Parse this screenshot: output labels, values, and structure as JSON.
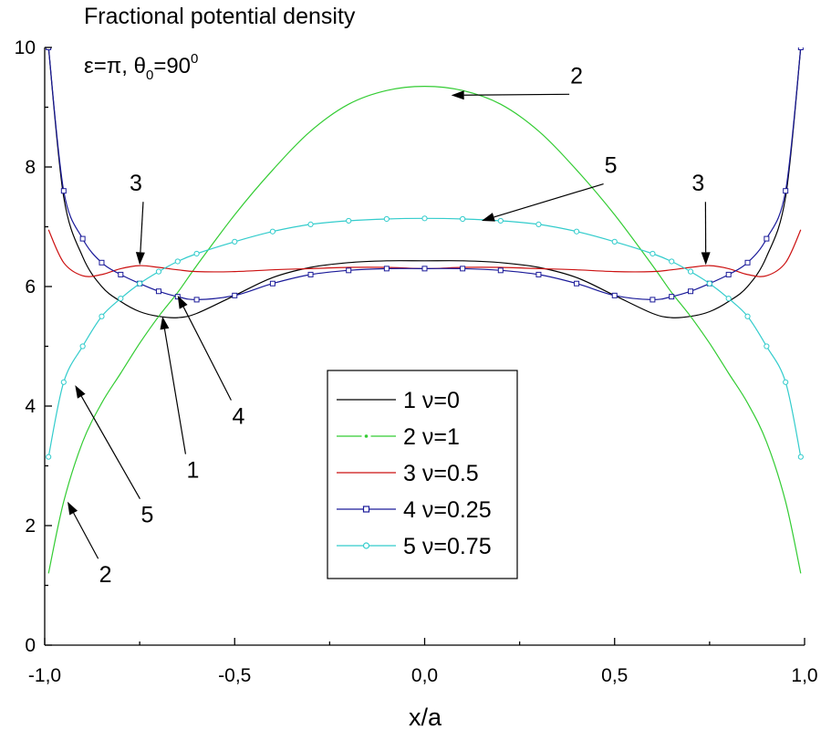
{
  "chart_data": {
    "type": "line",
    "title": "Fractional potential density",
    "subtitle": "ε=π, θ0=90°",
    "subtitle_parts": {
      "prefix": "ε=π, θ",
      "subscript": "0",
      "value": "=90",
      "superscript": "0"
    },
    "xlabel": "x/a",
    "ylabel": "",
    "xlim": [
      -1.0,
      1.0
    ],
    "ylim": [
      0,
      10
    ],
    "x_ticks": [
      -1.0,
      -0.5,
      0.0,
      0.5,
      1.0
    ],
    "x_tick_labels": [
      "-1,0",
      "-0,5",
      "0,0",
      "0,5",
      "1,0"
    ],
    "y_ticks": [
      0,
      2,
      4,
      6,
      8,
      10
    ],
    "y_tick_labels": [
      "0",
      "2",
      "4",
      "6",
      "8",
      "10"
    ],
    "grid": false,
    "legend_position": "center-right",
    "x": [
      -0.99,
      -0.95,
      -0.9,
      -0.85,
      -0.8,
      -0.75,
      -0.7,
      -0.65,
      -0.6,
      -0.5,
      -0.4,
      -0.3,
      -0.2,
      -0.1,
      0.0,
      0.1,
      0.2,
      0.3,
      0.4,
      0.5,
      0.6,
      0.65,
      0.7,
      0.75,
      0.8,
      0.85,
      0.9,
      0.95,
      0.99
    ],
    "series": [
      {
        "name": "1 ν=0",
        "legend_label": "1 ν=0",
        "color": "#000000",
        "marker": "none",
        "values": [
          10.0,
          7.5,
          6.5,
          6.0,
          5.75,
          5.58,
          5.5,
          5.48,
          5.55,
          5.85,
          6.15,
          6.32,
          6.4,
          6.43,
          6.43,
          6.43,
          6.4,
          6.32,
          6.15,
          5.85,
          5.55,
          5.48,
          5.5,
          5.58,
          5.75,
          6.0,
          6.5,
          7.5,
          10.0
        ]
      },
      {
        "name": "2 ν=1",
        "legend_label": "2 ν=1",
        "color": "#33cc33",
        "marker": "none",
        "values": [
          1.2,
          2.4,
          3.4,
          4.05,
          4.55,
          5.05,
          5.5,
          5.9,
          6.35,
          7.2,
          7.95,
          8.6,
          9.05,
          9.28,
          9.35,
          9.28,
          9.05,
          8.6,
          7.95,
          7.2,
          6.35,
          5.9,
          5.5,
          5.05,
          4.55,
          4.05,
          3.4,
          2.4,
          1.2
        ]
      },
      {
        "name": "3 ν=0.5",
        "legend_label": "3 ν=0.5",
        "color": "#cc1111",
        "marker": "none",
        "values": [
          6.95,
          6.4,
          6.18,
          6.2,
          6.3,
          6.35,
          6.32,
          6.28,
          6.25,
          6.25,
          6.28,
          6.3,
          6.32,
          6.32,
          6.3,
          6.32,
          6.32,
          6.3,
          6.28,
          6.25,
          6.25,
          6.28,
          6.32,
          6.35,
          6.3,
          6.2,
          6.18,
          6.4,
          6.95
        ]
      },
      {
        "name": "4 ν=0.25",
        "legend_label": "4 ν=0.25",
        "color": "#1a1a99",
        "marker": "square",
        "values": [
          10.0,
          7.6,
          6.8,
          6.4,
          6.2,
          6.05,
          5.92,
          5.83,
          5.78,
          5.85,
          6.05,
          6.2,
          6.27,
          6.3,
          6.3,
          6.3,
          6.27,
          6.2,
          6.05,
          5.85,
          5.78,
          5.83,
          5.92,
          6.05,
          6.2,
          6.4,
          6.8,
          7.6,
          10.0
        ]
      },
      {
        "name": "5 ν=0.75",
        "legend_label": "5 ν=0.75",
        "color": "#33cccc",
        "marker": "circle",
        "values": [
          3.15,
          4.4,
          5.0,
          5.5,
          5.8,
          6.05,
          6.25,
          6.42,
          6.55,
          6.75,
          6.92,
          7.04,
          7.1,
          7.13,
          7.14,
          7.13,
          7.1,
          7.04,
          6.92,
          6.75,
          6.55,
          6.42,
          6.25,
          6.05,
          5.8,
          5.5,
          5.0,
          4.4,
          3.15
        ]
      }
    ],
    "annotations": [
      {
        "label": "2",
        "text_x": 0.4,
        "text_y": 9.4,
        "target_x": 0.07,
        "target_y": 9.2
      },
      {
        "label": "5",
        "text_x": 0.49,
        "text_y": 7.9,
        "target_x": 0.15,
        "target_y": 7.1
      },
      {
        "label": "3",
        "text_x": -0.76,
        "text_y": 7.6,
        "target_x": -0.75,
        "target_y": 6.36
      },
      {
        "label": "3",
        "text_x": 0.72,
        "text_y": 7.6,
        "target_x": 0.74,
        "target_y": 6.36
      },
      {
        "label": "4",
        "text_x": -0.49,
        "text_y": 3.7,
        "target_x": -0.65,
        "target_y": 5.85
      },
      {
        "label": "1",
        "text_x": -0.61,
        "text_y": 2.8,
        "target_x": -0.69,
        "target_y": 5.5
      },
      {
        "label": "5",
        "text_x": -0.73,
        "text_y": 2.05,
        "target_x": -0.92,
        "target_y": 4.35
      },
      {
        "label": "2",
        "text_x": -0.84,
        "text_y": 1.05,
        "target_x": -0.94,
        "target_y": 2.4
      }
    ]
  }
}
